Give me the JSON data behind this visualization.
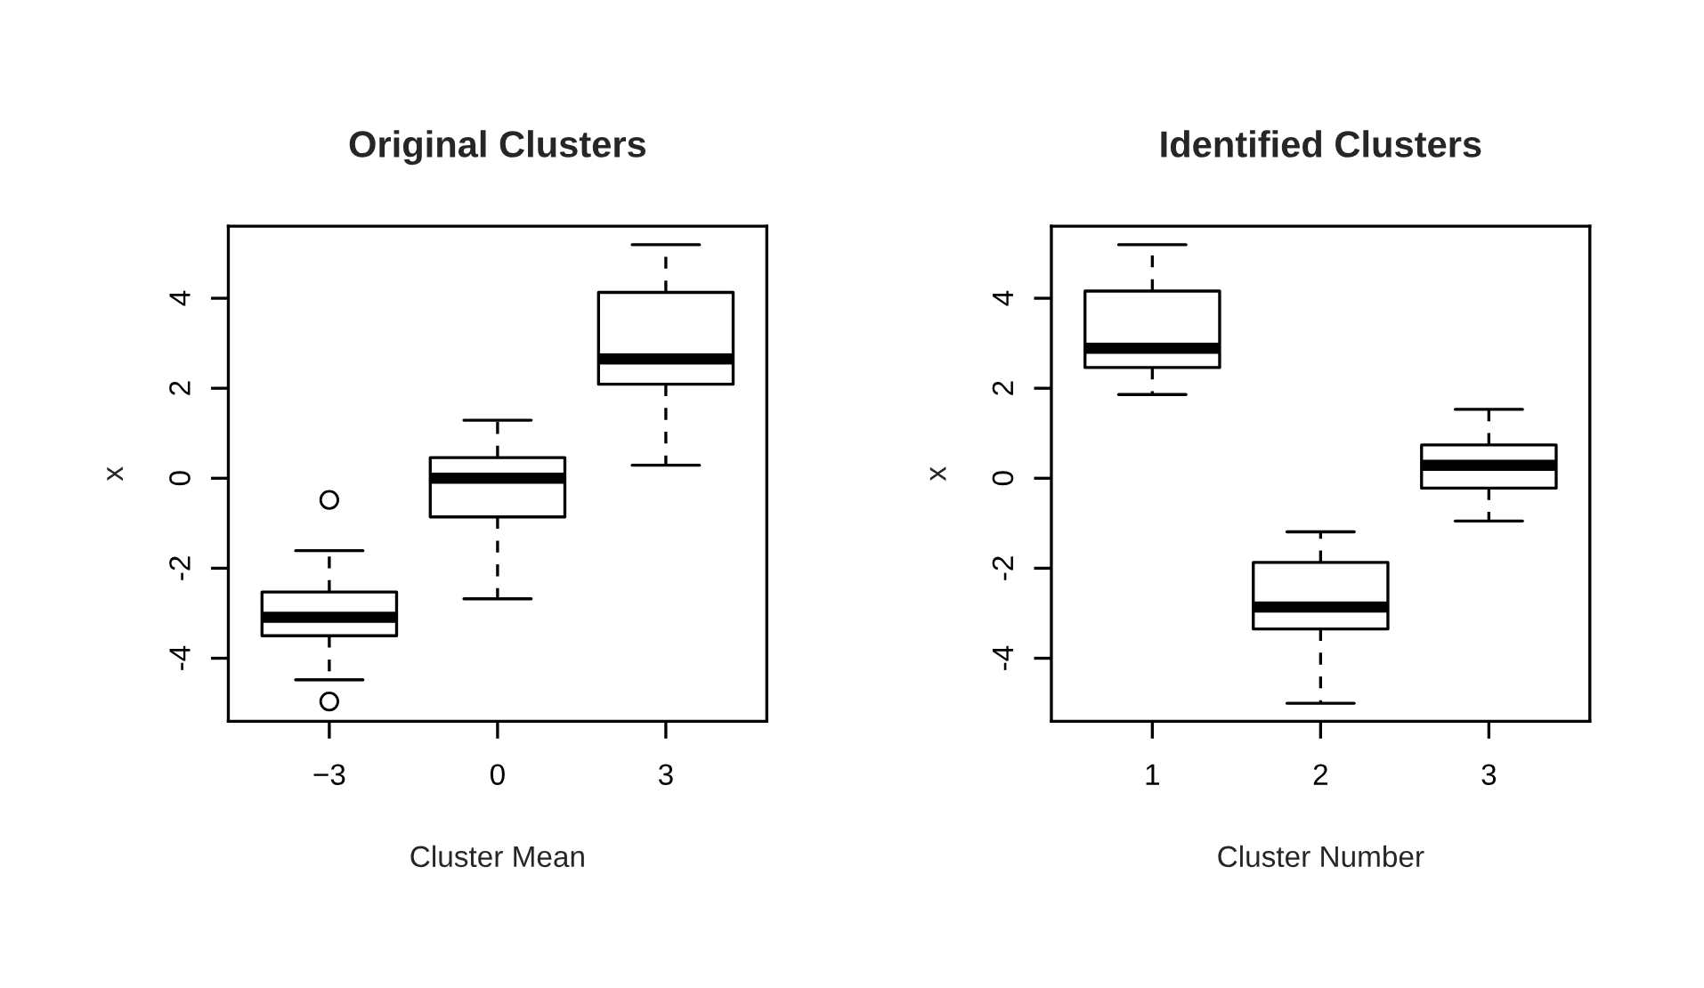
{
  "chart_data": [
    {
      "type": "box",
      "title": "Original Clusters",
      "xlabel": "Cluster Mean",
      "ylabel": "x",
      "categories": [
        "−3",
        "0",
        "3"
      ],
      "ylim": [
        -5.4,
        5.6
      ],
      "yticks": [
        -4,
        -2,
        0,
        2,
        4
      ],
      "boxes": [
        {
          "low": -4.48,
          "q1": -3.5,
          "median": -3.09,
          "q3": -2.53,
          "high": -1.61,
          "outliers": [
            -0.48,
            -4.96
          ]
        },
        {
          "low": -2.68,
          "q1": -0.86,
          "median": 0.0,
          "q3": 0.46,
          "high": 1.29
        },
        {
          "low": 0.29,
          "q1": 2.09,
          "median": 2.65,
          "q3": 4.13,
          "high": 5.19
        }
      ]
    },
    {
      "type": "box",
      "title": "Identified Clusters",
      "xlabel": "Cluster Number",
      "ylabel": "x",
      "categories": [
        "1",
        "2",
        "3"
      ],
      "ylim": [
        -5.4,
        5.6
      ],
      "yticks": [
        -4,
        -2,
        0,
        2,
        4
      ],
      "boxes": [
        {
          "low": 1.86,
          "q1": 2.46,
          "median": 2.89,
          "q3": 4.16,
          "high": 5.19
        },
        {
          "low": -5.0,
          "q1": -3.35,
          "median": -2.86,
          "q3": -1.87,
          "high": -1.19
        },
        {
          "low": -0.95,
          "q1": -0.22,
          "median": 0.29,
          "q3": 0.74,
          "high": 1.53
        }
      ]
    }
  ]
}
